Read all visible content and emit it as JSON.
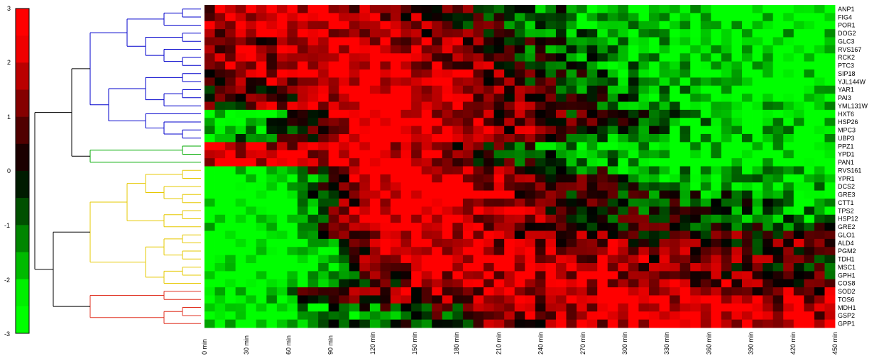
{
  "chart_data": {
    "type": "heatmap",
    "title": "",
    "xlabel": "",
    "ylabel": "",
    "x": [
      "0 min",
      "30 min",
      "60 min",
      "90 min",
      "120 min",
      "150 min",
      "180 min",
      "210 min",
      "240 min",
      "270 min",
      "300 min",
      "330 min",
      "360 min",
      "390 min",
      "420 min",
      "450 min"
    ],
    "y": [
      "ANP1",
      "FIG4",
      "POR1",
      "DOG2",
      "GLC3",
      "RVS167",
      "RCK2",
      "PTC3",
      "SIP18",
      "YJL144W",
      "YAR1",
      "PAI3",
      "YML131W",
      "HXT6",
      "HSP26",
      "MPC3",
      "UBP3",
      "PPZ1",
      "YPD1",
      "PAN1",
      "RVS161",
      "YPR1",
      "DCS2",
      "GRE3",
      "CTT1",
      "TPS2",
      "HSP12",
      "GRE2",
      "GLO1",
      "ALD4",
      "PGM2",
      "TDH1",
      "MSC1",
      "GPH1",
      "COS8",
      "SOD2",
      "TOS6",
      "MDH1",
      "GSP2",
      "GPP1"
    ],
    "colorbar": {
      "ticks": [
        "3",
        "2",
        "1",
        "0",
        "-1",
        "-2",
        "-3"
      ],
      "range": [
        -3,
        3
      ],
      "colors": {
        "high": "#ff0000",
        "zero": "#000000",
        "low": "#00ff00"
      }
    },
    "dendrogram_clusters": [
      {
        "color": "#0000cc",
        "rows": [
          0,
          16
        ]
      },
      {
        "color": "#00aa00",
        "rows": [
          17,
          19
        ]
      },
      {
        "color": "#e6c800",
        "rows": [
          20,
          34
        ]
      },
      {
        "color": "#e03020",
        "rows": [
          35,
          39
        ]
      }
    ],
    "values": [
      [
        1.5,
        1.8,
        2.0,
        1.6,
        1.2,
        0.8,
        0.4,
        0.0,
        -0.6,
        -1.2,
        -1.5,
        -1.8,
        -2.0,
        -2.1,
        -2.2,
        -2.2
      ],
      [
        1.6,
        1.9,
        2.0,
        1.8,
        1.4,
        0.9,
        0.5,
        0.0,
        -0.6,
        -1.1,
        -1.5,
        -1.8,
        -2.0,
        -2.1,
        -2.1,
        -2.2
      ],
      [
        1.4,
        1.7,
        2.0,
        1.8,
        1.5,
        1.0,
        0.4,
        -0.2,
        -0.8,
        -1.3,
        -1.6,
        -1.9,
        -2.0,
        -2.1,
        -2.2,
        -2.2
      ],
      [
        0.8,
        1.2,
        1.6,
        1.8,
        1.6,
        1.2,
        0.6,
        0.0,
        -0.6,
        -1.2,
        -1.6,
        -1.8,
        -1.9,
        -2.0,
        -2.0,
        -2.1
      ],
      [
        0.6,
        1.0,
        1.4,
        1.8,
        1.8,
        1.4,
        0.8,
        0.2,
        -0.4,
        -1.0,
        -1.4,
        -1.8,
        -2.0,
        -2.0,
        -2.1,
        -2.1
      ],
      [
        1.2,
        1.5,
        1.8,
        2.0,
        1.9,
        1.5,
        1.0,
        0.3,
        -0.4,
        -1.0,
        -1.5,
        -1.8,
        -2.0,
        -2.1,
        -2.2,
        -2.2
      ],
      [
        1.0,
        1.3,
        1.6,
        2.0,
        2.0,
        1.6,
        1.1,
        0.4,
        -0.3,
        -0.9,
        -1.4,
        -1.7,
        -1.9,
        -2.0,
        -2.1,
        -2.1
      ],
      [
        0.9,
        1.2,
        1.6,
        2.0,
        2.1,
        1.7,
        1.2,
        0.5,
        -0.2,
        -0.8,
        -1.3,
        -1.7,
        -1.9,
        -2.0,
        -2.0,
        -2.1
      ],
      [
        0.8,
        1.1,
        1.5,
        2.0,
        2.2,
        2.0,
        1.4,
        0.8,
        0.0,
        -0.6,
        -1.2,
        -1.6,
        -1.8,
        -2.0,
        -2.0,
        -2.1
      ],
      [
        0.6,
        0.9,
        1.3,
        1.9,
        2.2,
        2.0,
        1.5,
        0.8,
        0.1,
        -0.5,
        -1.1,
        -1.5,
        -1.8,
        -1.9,
        -2.0,
        -2.0
      ],
      [
        0.0,
        0.4,
        1.0,
        1.8,
        2.2,
        2.0,
        1.5,
        0.9,
        0.2,
        -0.4,
        -1.0,
        -1.4,
        -1.7,
        -1.9,
        -2.0,
        -2.0
      ],
      [
        -0.2,
        0.2,
        0.8,
        1.7,
        2.2,
        2.1,
        1.6,
        1.0,
        0.3,
        -0.3,
        -0.9,
        -1.4,
        -1.7,
        -1.9,
        -2.0,
        -2.0
      ],
      [
        0.2,
        0.6,
        1.1,
        1.9,
        2.2,
        2.1,
        1.6,
        1.0,
        0.3,
        -0.3,
        -0.9,
        -1.4,
        -1.7,
        -1.9,
        -1.9,
        -2.0
      ],
      [
        -2.2,
        -2.0,
        -1.0,
        1.5,
        2.2,
        2.1,
        1.6,
        1.0,
        0.5,
        0.0,
        -0.6,
        -1.1,
        -1.5,
        -1.8,
        -1.9,
        -2.0
      ],
      [
        -2.0,
        -1.8,
        -0.6,
        1.6,
        2.3,
        2.2,
        1.8,
        1.2,
        0.6,
        0.1,
        -0.5,
        -1.0,
        -1.4,
        -1.7,
        -1.9,
        -1.9
      ],
      [
        -1.8,
        -1.5,
        -0.4,
        1.6,
        2.2,
        2.1,
        1.7,
        1.2,
        0.6,
        0.1,
        -0.5,
        -1.0,
        -1.4,
        -1.7,
        -1.8,
        -1.9
      ],
      [
        -1.6,
        -1.2,
        0.0,
        1.6,
        2.2,
        2.0,
        1.5,
        0.8,
        0.2,
        -0.4,
        -0.9,
        -1.3,
        -1.6,
        -1.8,
        -1.9,
        -2.0
      ],
      [
        1.8,
        1.6,
        1.2,
        1.8,
        2.0,
        1.5,
        0.8,
        0.0,
        -0.8,
        -1.3,
        -1.6,
        -1.8,
        -1.9,
        -2.0,
        -2.0,
        -2.1
      ],
      [
        2.0,
        1.8,
        1.4,
        1.9,
        2.0,
        1.6,
        0.9,
        0.1,
        -0.6,
        -1.2,
        -1.6,
        -1.8,
        -1.9,
        -2.0,
        -2.1,
        -2.1
      ],
      [
        1.9,
        1.7,
        1.3,
        1.8,
        2.0,
        1.6,
        1.0,
        0.3,
        -0.4,
        -1.0,
        -1.4,
        -1.7,
        -1.9,
        -2.0,
        -2.0,
        -2.1
      ],
      [
        -2.2,
        -2.2,
        -1.6,
        1.0,
        2.2,
        2.2,
        1.8,
        1.2,
        0.4,
        -0.3,
        -0.8,
        -1.2,
        -1.5,
        -1.7,
        -1.8,
        -1.9
      ],
      [
        -2.4,
        -2.4,
        -2.0,
        0.6,
        2.2,
        2.3,
        2.0,
        1.4,
        0.6,
        0.0,
        -0.5,
        -0.9,
        -1.2,
        -1.5,
        -1.7,
        -1.8
      ],
      [
        -2.3,
        -2.2,
        -1.8,
        0.4,
        2.1,
        2.3,
        2.0,
        1.4,
        0.7,
        0.1,
        -0.4,
        -0.8,
        -1.1,
        -1.4,
        -1.6,
        -1.7
      ],
      [
        -2.4,
        -2.4,
        -2.2,
        0.2,
        2.0,
        2.3,
        2.1,
        1.5,
        0.8,
        0.2,
        -0.2,
        -0.5,
        -0.8,
        -1.1,
        -1.3,
        -1.5
      ],
      [
        -2.4,
        -2.4,
        -2.2,
        0.2,
        2.0,
        2.2,
        2.0,
        1.4,
        0.8,
        0.3,
        0.0,
        -0.3,
        -0.6,
        -0.9,
        -1.2,
        -1.4
      ],
      [
        -2.4,
        -2.4,
        -2.0,
        0.4,
        2.0,
        2.2,
        1.9,
        1.3,
        0.7,
        0.3,
        0.0,
        -0.2,
        -0.5,
        -0.8,
        -1.1,
        -1.4
      ],
      [
        -2.4,
        -2.4,
        -1.8,
        0.8,
        2.1,
        2.1,
        1.8,
        1.2,
        0.7,
        0.3,
        0.0,
        -0.2,
        -0.4,
        -0.7,
        -1.0,
        -1.2
      ],
      [
        -2.2,
        -2.2,
        -1.6,
        1.0,
        2.0,
        2.0,
        1.6,
        1.2,
        0.8,
        0.6,
        0.4,
        0.2,
        0.0,
        -0.2,
        -0.4,
        -0.6
      ],
      [
        -2.4,
        -2.4,
        -2.0,
        0.0,
        1.8,
        1.8,
        1.5,
        1.2,
        0.9,
        0.8,
        0.6,
        0.5,
        0.4,
        0.4,
        0.6,
        0.8
      ],
      [
        -2.4,
        -2.4,
        -2.2,
        -0.6,
        1.6,
        1.8,
        1.6,
        1.4,
        1.2,
        1.0,
        0.8,
        0.6,
        0.4,
        0.3,
        0.6,
        0.9
      ],
      [
        -2.4,
        -2.4,
        -2.2,
        -1.0,
        1.4,
        1.8,
        1.8,
        1.6,
        1.4,
        1.2,
        1.0,
        0.8,
        0.6,
        0.4,
        0.2,
        0.0
      ],
      [
        -2.4,
        -2.4,
        -2.2,
        -1.2,
        1.2,
        1.8,
        1.8,
        1.7,
        1.6,
        1.4,
        1.2,
        1.0,
        0.8,
        0.6,
        0.4,
        0.2
      ],
      [
        -2.4,
        -2.4,
        -2.3,
        -1.4,
        1.0,
        1.7,
        1.8,
        1.7,
        1.6,
        1.5,
        1.3,
        1.1,
        0.9,
        0.6,
        0.3,
        0.0
      ],
      [
        -2.4,
        -2.4,
        -2.2,
        -1.6,
        0.6,
        1.4,
        1.6,
        1.6,
        1.6,
        1.5,
        1.4,
        1.2,
        1.0,
        0.7,
        0.4,
        0.1
      ],
      [
        -2.3,
        -2.2,
        -2.0,
        -1.6,
        0.2,
        1.0,
        1.4,
        1.5,
        1.6,
        1.6,
        1.6,
        1.4,
        1.2,
        0.9,
        0.6,
        0.4
      ],
      [
        -2.2,
        -1.8,
        -0.4,
        0.2,
        0.6,
        1.0,
        1.2,
        1.4,
        1.6,
        1.7,
        1.8,
        1.6,
        1.4,
        1.2,
        1.0,
        0.8
      ],
      [
        -2.2,
        -1.8,
        -0.6,
        0.0,
        0.4,
        0.8,
        1.0,
        1.2,
        1.4,
        1.6,
        1.8,
        1.8,
        1.6,
        1.4,
        1.2,
        1.0
      ],
      [
        -2.4,
        -2.2,
        -1.6,
        -1.0,
        -0.6,
        -0.2,
        0.2,
        0.8,
        1.2,
        1.6,
        1.8,
        1.9,
        1.8,
        1.6,
        1.4,
        1.2
      ],
      [
        -2.4,
        -2.2,
        -1.8,
        -1.2,
        -0.8,
        -0.4,
        0.0,
        0.6,
        1.2,
        1.6,
        1.9,
        2.0,
        1.9,
        1.8,
        1.6,
        1.4
      ],
      [
        -2.2,
        -2.0,
        -1.4,
        -0.8,
        -0.6,
        -0.2,
        0.2,
        0.6,
        1.0,
        1.4,
        1.8,
        2.0,
        2.0,
        1.9,
        1.8,
        1.6
      ]
    ]
  }
}
